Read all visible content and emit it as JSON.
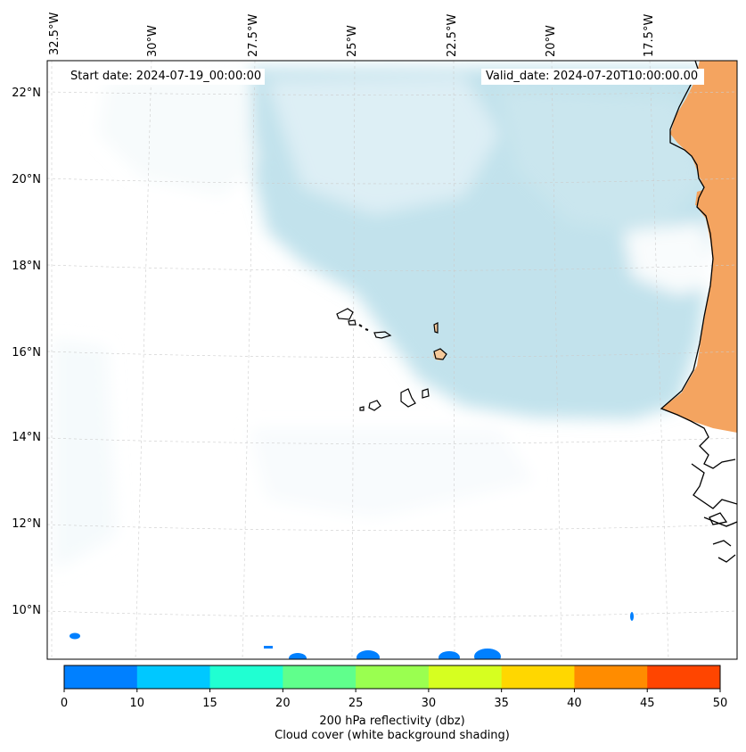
{
  "map": {
    "start_label": "Start date: 2024-07-19_00:00:00",
    "valid_label": "Valid_date: 2024-07-20T10:00:00.00",
    "lon_labels": [
      "32.5°W",
      "30°W",
      "27.5°W",
      "25°W",
      "22.5°W",
      "20°W",
      "17.5°W"
    ],
    "lat_labels": [
      "22°N",
      "20°N",
      "18°N",
      "16°N",
      "14°N",
      "12°N",
      "10°N"
    ],
    "colors": {
      "ocean": "#ffffff",
      "cloud": "#add8e6",
      "land_shading": "#f4a460",
      "coastline": "#000000",
      "gridline": "#cccccc"
    }
  },
  "colorbar": {
    "ticks": [
      "0",
      "10",
      "15",
      "20",
      "25",
      "30",
      "35",
      "40",
      "45",
      "50"
    ],
    "colors": [
      "#0080ff",
      "#00c8ff",
      "#20ffd2",
      "#60ff8c",
      "#9aff50",
      "#d6ff20",
      "#ffd700",
      "#ff8c00",
      "#ff4500"
    ],
    "label_line1": "200 hPa reflectivity (dbz)",
    "label_line2": "Cloud cover (white background shading)"
  }
}
